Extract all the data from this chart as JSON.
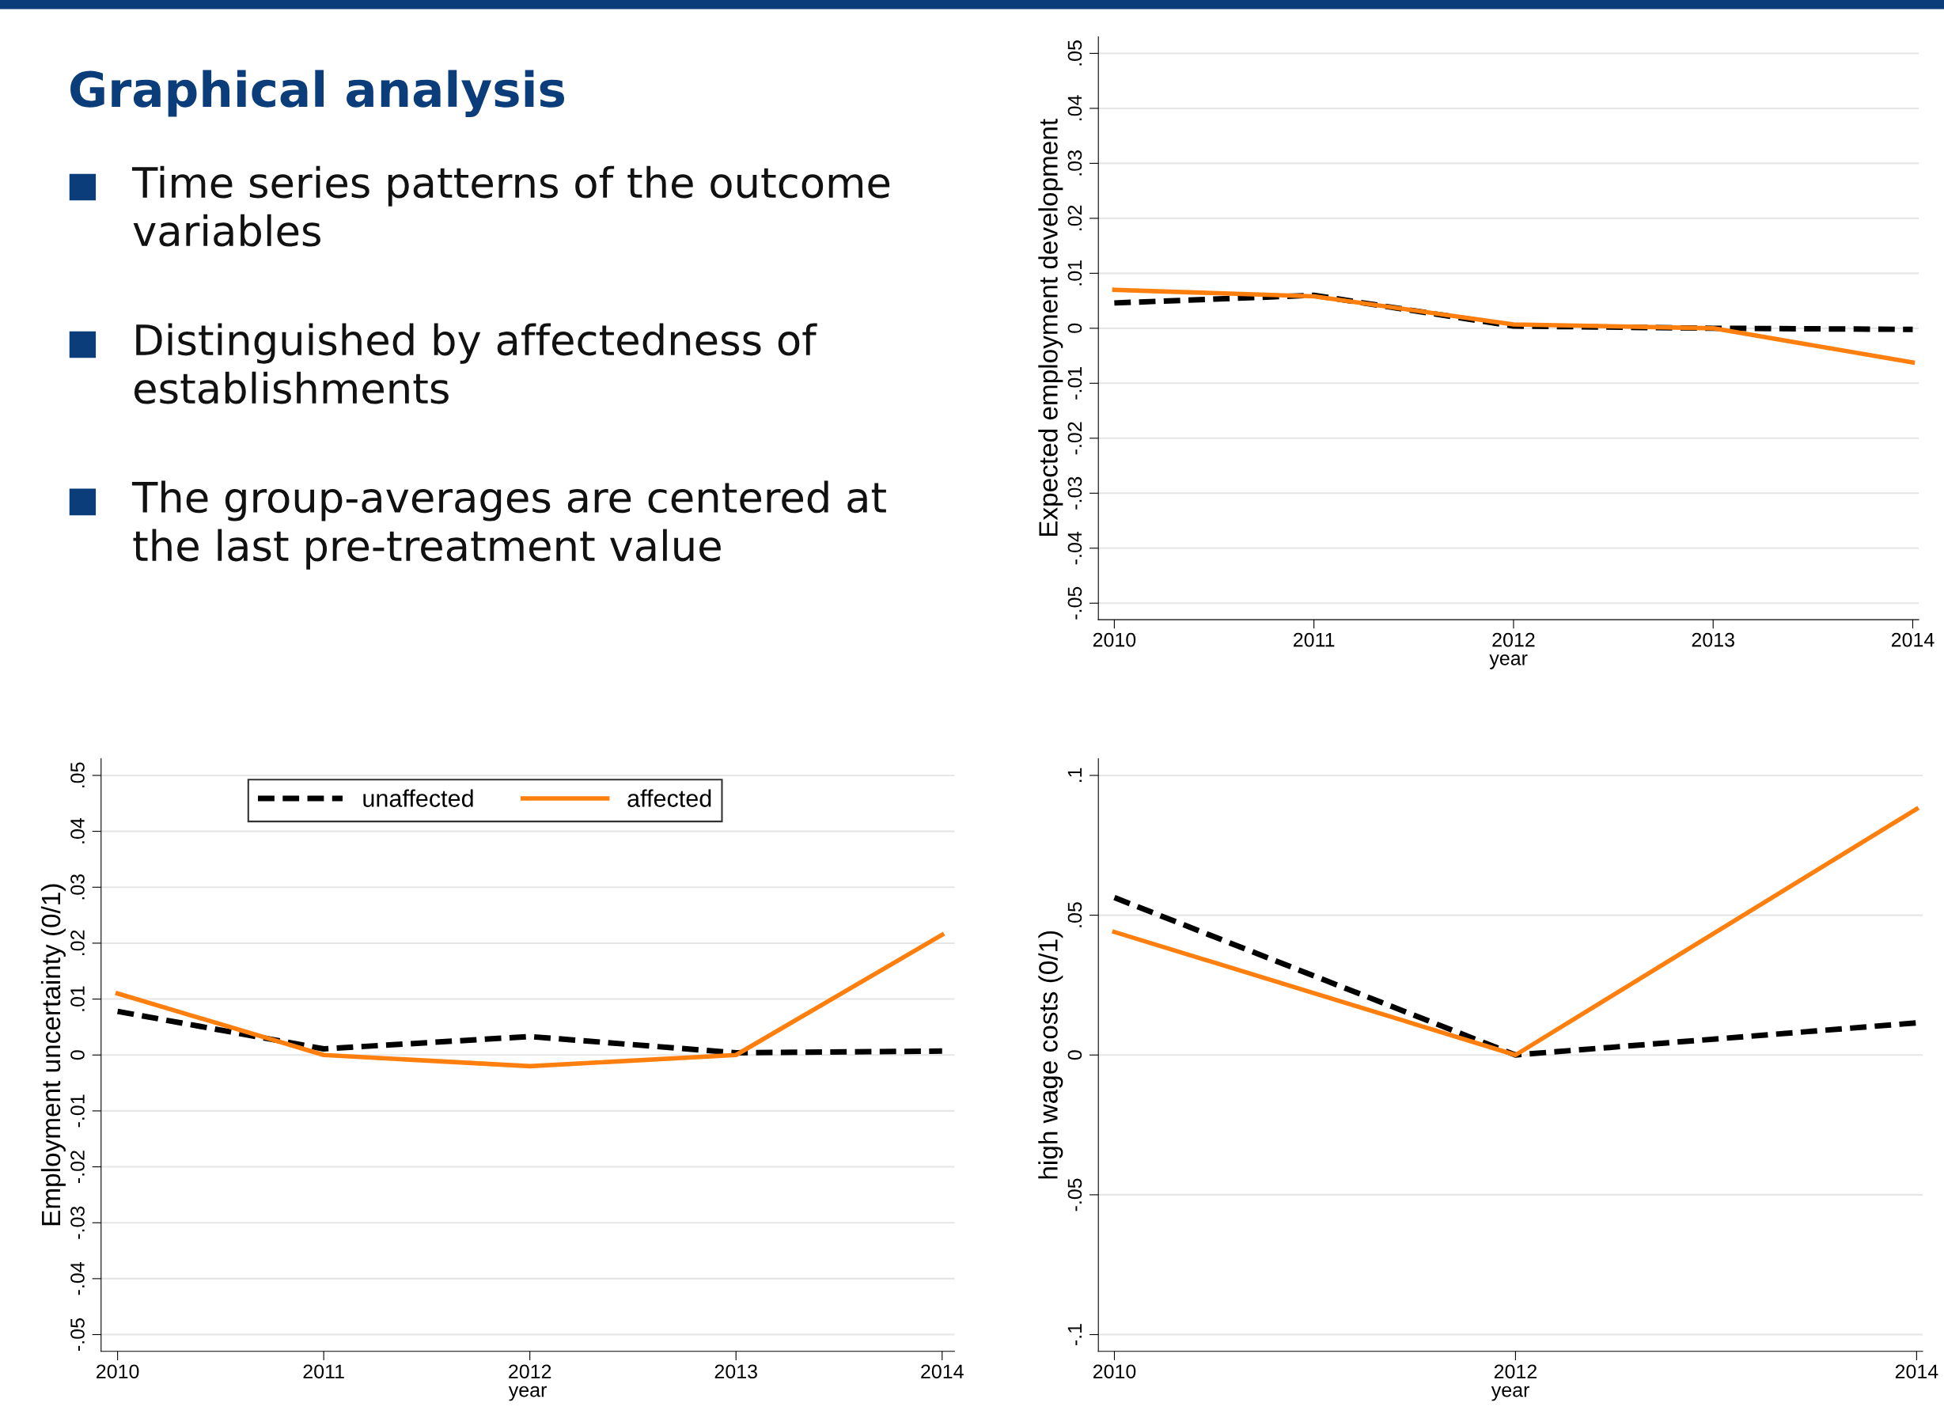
{
  "chart_data": [
    {
      "type": "other",
      "title": "Graphical analysis",
      "annotations": [
        "Time series patterns of the outcome\nvariables",
        "Distinguished by affectedness of\nestablishments",
        "The group-averages are centered at\nthe last pre-treatment value"
      ]
    },
    {
      "type": "line",
      "xlabel": "year",
      "ylabel": "Expected employment development",
      "x": [
        2010,
        2011,
        2012,
        2013,
        2014
      ],
      "xlim": [
        2009.92,
        2014.03
      ],
      "xticks": [
        2010,
        2011,
        2012,
        2013,
        2014
      ],
      "ylim": [
        -0.053,
        0.053
      ],
      "yticks": [
        {
          "value": 0.05,
          "label": ".05"
        },
        {
          "value": 0.04,
          "label": ".04"
        },
        {
          "value": 0.03,
          "label": ".03"
        },
        {
          "value": 0.02,
          "label": ".02"
        },
        {
          "value": 0.01,
          "label": ".01"
        },
        {
          "value": 0,
          "label": "0"
        },
        {
          "value": -0.01,
          "label": "-.01"
        },
        {
          "value": -0.02,
          "label": "-.02"
        },
        {
          "value": -0.03,
          "label": "-.03"
        },
        {
          "value": -0.04,
          "label": "-.04"
        },
        {
          "value": -0.05,
          "label": "-.05"
        }
      ],
      "grid": "y",
      "legend": false,
      "series": [
        {
          "color": "#000000",
          "line_style": "dashed",
          "values": [
            0.0046,
            0.006,
            0.0004,
            0.0,
            -0.0002
          ]
        },
        {
          "color": "#ff7f0e",
          "line_style": "solid",
          "values": [
            0.007,
            0.0058,
            0.0007,
            0.0,
            -0.0062
          ]
        }
      ]
    },
    {
      "type": "line",
      "xlabel": "year",
      "ylabel": "Employment uncertainty (0/1)",
      "x": [
        2010,
        2011,
        2012,
        2013,
        2014
      ],
      "xlim": [
        2009.92,
        2014.06
      ],
      "xticks": [
        2010,
        2011,
        2012,
        2013,
        2014
      ],
      "ylim": [
        -0.053,
        0.053
      ],
      "yticks": [
        {
          "value": 0.05,
          "label": ".05"
        },
        {
          "value": 0.04,
          "label": ".04"
        },
        {
          "value": 0.03,
          "label": ".03"
        },
        {
          "value": 0.02,
          "label": ".02"
        },
        {
          "value": 0.01,
          "label": ".01"
        },
        {
          "value": 0,
          "label": "0"
        },
        {
          "value": -0.01,
          "label": "-.01"
        },
        {
          "value": -0.02,
          "label": "-.02"
        },
        {
          "value": -0.03,
          "label": "-.03"
        },
        {
          "value": -0.04,
          "label": "-.04"
        },
        {
          "value": -0.05,
          "label": "-.05"
        }
      ],
      "grid": "y",
      "legend": "top",
      "series": [
        {
          "name": "unaffected",
          "color": "#000000",
          "line_style": "dashed",
          "values": [
            0.0078,
            0.0011,
            0.0033,
            0.0004,
            0.0007
          ]
        },
        {
          "name": "affected",
          "color": "#ff7f0e",
          "line_style": "solid",
          "values": [
            0.011,
            0.0,
            -0.002,
            0.0,
            0.0215
          ]
        }
      ]
    },
    {
      "type": "line",
      "xlabel": "year",
      "ylabel": "high wage costs (0/1)",
      "x": [
        2010,
        2012,
        2014
      ],
      "xlim": [
        2009.92,
        2014.03
      ],
      "xticks": [
        2010,
        2012,
        2014
      ],
      "ylim": [
        -0.106,
        0.106
      ],
      "yticks": [
        {
          "value": 0.1,
          "label": ".1"
        },
        {
          "value": 0.05,
          "label": ".05"
        },
        {
          "value": 0,
          "label": "0"
        },
        {
          "value": -0.05,
          "label": "-.05"
        },
        {
          "value": -0.1,
          "label": "-.1"
        }
      ],
      "grid": "y",
      "legend": false,
      "series": [
        {
          "color": "#000000",
          "line_style": "dashed",
          "values": [
            0.0563,
            0.0,
            0.0115
          ]
        },
        {
          "color": "#ff7f0e",
          "line_style": "solid",
          "values": [
            0.044,
            0.0,
            0.088
          ]
        }
      ]
    }
  ]
}
